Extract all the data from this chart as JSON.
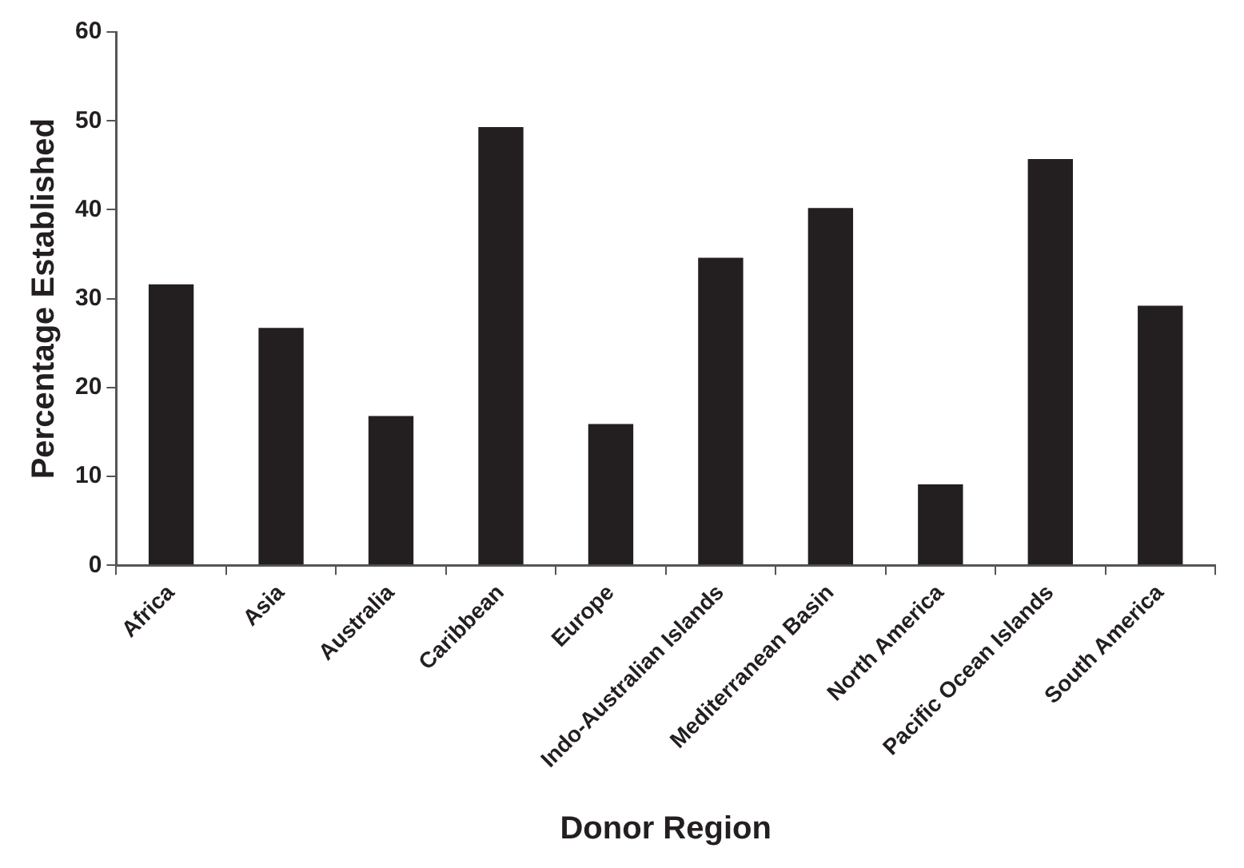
{
  "chart_data": {
    "type": "bar",
    "xlabel": "Donor Region",
    "ylabel": "Percentage Established",
    "categories": [
      "Africa",
      "Asia",
      "Australia",
      "Caribbean",
      "Europe",
      "Indo-Australian Islands",
      "Mediterranean Basin",
      "North America",
      "Pacific Ocean Islands",
      "South America"
    ],
    "values": [
      31.6,
      26.7,
      16.8,
      49.3,
      15.9,
      34.6,
      40.2,
      9.1,
      45.7,
      29.2
    ],
    "color": "#231f20",
    "ylim": [
      0,
      60
    ],
    "yticks": [
      0,
      10,
      20,
      30,
      40,
      50,
      60
    ],
    "grid": false,
    "legend": false
  }
}
